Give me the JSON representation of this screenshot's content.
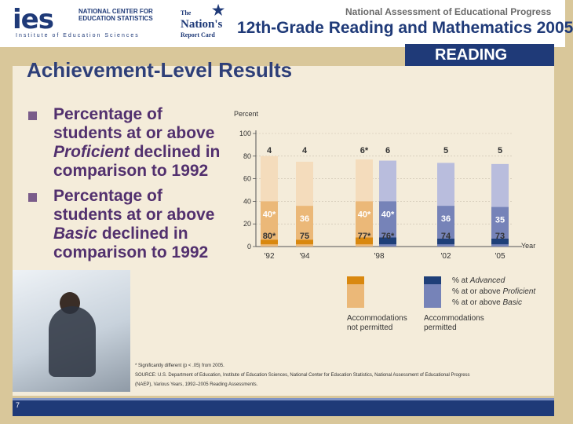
{
  "header": {
    "ies_logo": "ies",
    "ies_line1": "NATIONAL CENTER FOR",
    "ies_line2": "EDUCATION STATISTICS",
    "ies_institute": "Institute of Education Sciences",
    "nrc_the": "The",
    "nrc_name": "Nation's",
    "nrc_card": "Report Card",
    "naep_title": "National Assessment of Educational Progress",
    "grade_title": "12th-Grade Reading and Mathematics 2005",
    "subject_tab": "READING"
  },
  "page": {
    "title": "Achievement-Level Results",
    "bullets": [
      {
        "prefix": "Percentage of students at or above ",
        "emph": "Proficient",
        "suffix": " declined in comparison to 1992"
      },
      {
        "prefix": "Percentage of students at or above ",
        "emph": "Basic",
        "suffix": " declined in comparison to 1992"
      }
    ],
    "footnote_line1": "* Significantly different (p < .05) from 2005.",
    "footnote_line2": "SOURCE: U.S. Department of Education, Institute of Education Sciences, National Center for Education Statistics, National Assessment of Educational Progress",
    "footnote_line3": "(NAEP), Various Years, 1992–2005 Reading Assessments.",
    "page_number": "7"
  },
  "chart_data": {
    "type": "bar",
    "ylabel": "Percent",
    "xlabel": "Year",
    "ylim": [
      0,
      100
    ],
    "yticks": [
      0,
      20,
      40,
      60,
      80,
      100
    ],
    "bars": [
      {
        "year_label": "'92",
        "accommodations": "not permitted",
        "advanced": 4,
        "proficient": 40,
        "basic": 80,
        "advanced_label": "4",
        "proficient_label": "40*",
        "basic_label": "80*"
      },
      {
        "year_label": "'94",
        "accommodations": "not permitted",
        "advanced": 4,
        "proficient": 36,
        "basic": 75,
        "advanced_label": "4",
        "proficient_label": "36",
        "basic_label": "75"
      },
      {
        "year_label": "'98",
        "accommodations": "not permitted",
        "advanced": 6,
        "proficient": 40,
        "basic": 77,
        "advanced_label": "6*",
        "proficient_label": "40*",
        "basic_label": "77*"
      },
      {
        "year_label": "",
        "accommodations": "permitted",
        "advanced": 6,
        "proficient": 40,
        "basic": 76,
        "advanced_label": "6",
        "proficient_label": "40*",
        "basic_label": "76*"
      },
      {
        "year_label": "'02",
        "accommodations": "permitted",
        "advanced": 5,
        "proficient": 36,
        "basic": 74,
        "advanced_label": "5",
        "proficient_label": "36",
        "basic_label": "74"
      },
      {
        "year_label": "'05",
        "accommodations": "permitted",
        "advanced": 5,
        "proficient": 35,
        "basic": 73,
        "advanced_label": "5",
        "proficient_label": "35",
        "basic_label": "73"
      }
    ],
    "legend": {
      "advanced": "% at Advanced",
      "proficient": "% at or above Proficient",
      "basic": "% at or above Basic",
      "not_permitted": "Accommodations not permitted",
      "permitted": "Accommodations permitted"
    },
    "colors": {
      "np_advanced": "#d9880f",
      "np_proficient": "#ebb878",
      "np_basic": "#f4dcbc",
      "p_advanced": "#1f3f78",
      "p_proficient": "#7683b8",
      "p_basic": "#b9bddd"
    }
  }
}
